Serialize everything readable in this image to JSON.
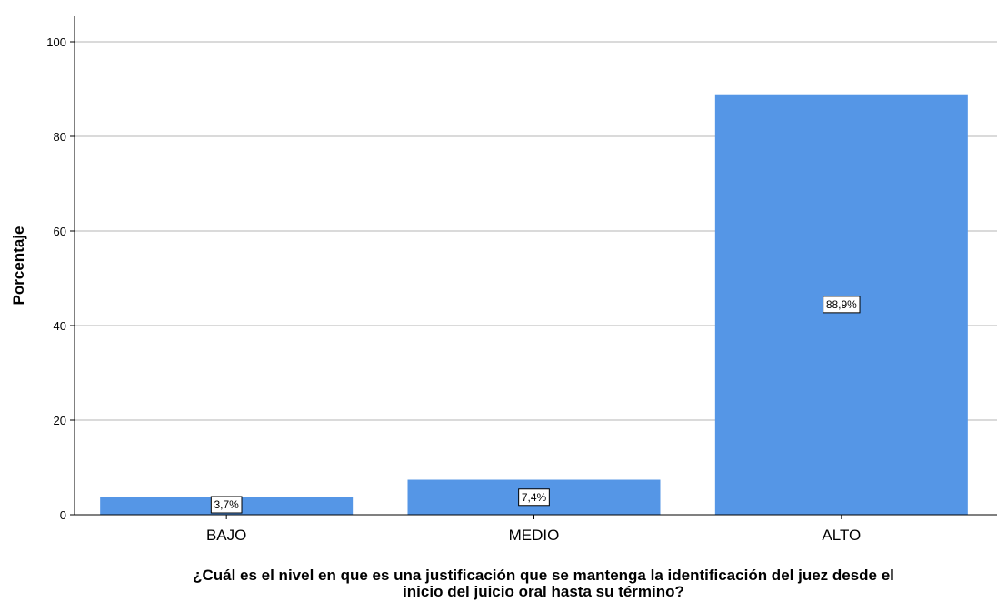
{
  "chart_data": {
    "type": "bar",
    "categories": [
      "BAJO",
      "MEDIO",
      "ALTO"
    ],
    "values": [
      3.7,
      7.4,
      88.9
    ],
    "data_labels": [
      "3,7%",
      "7,4%",
      "88,9%"
    ],
    "title": "",
    "xlabel": "¿Cuál es el nivel en que es una justificación que se mantenga la identificación del juez desde el inicio del juicio oral hasta su término?",
    "ylabel": "Porcentaje",
    "ylim": [
      0,
      100
    ],
    "yticks": [
      0,
      20,
      40,
      60,
      80,
      100
    ],
    "grid": true,
    "legend": "none",
    "colors": {
      "bar": "#5596e6",
      "grid": "#b4b4b4",
      "axis": "#000000"
    }
  }
}
